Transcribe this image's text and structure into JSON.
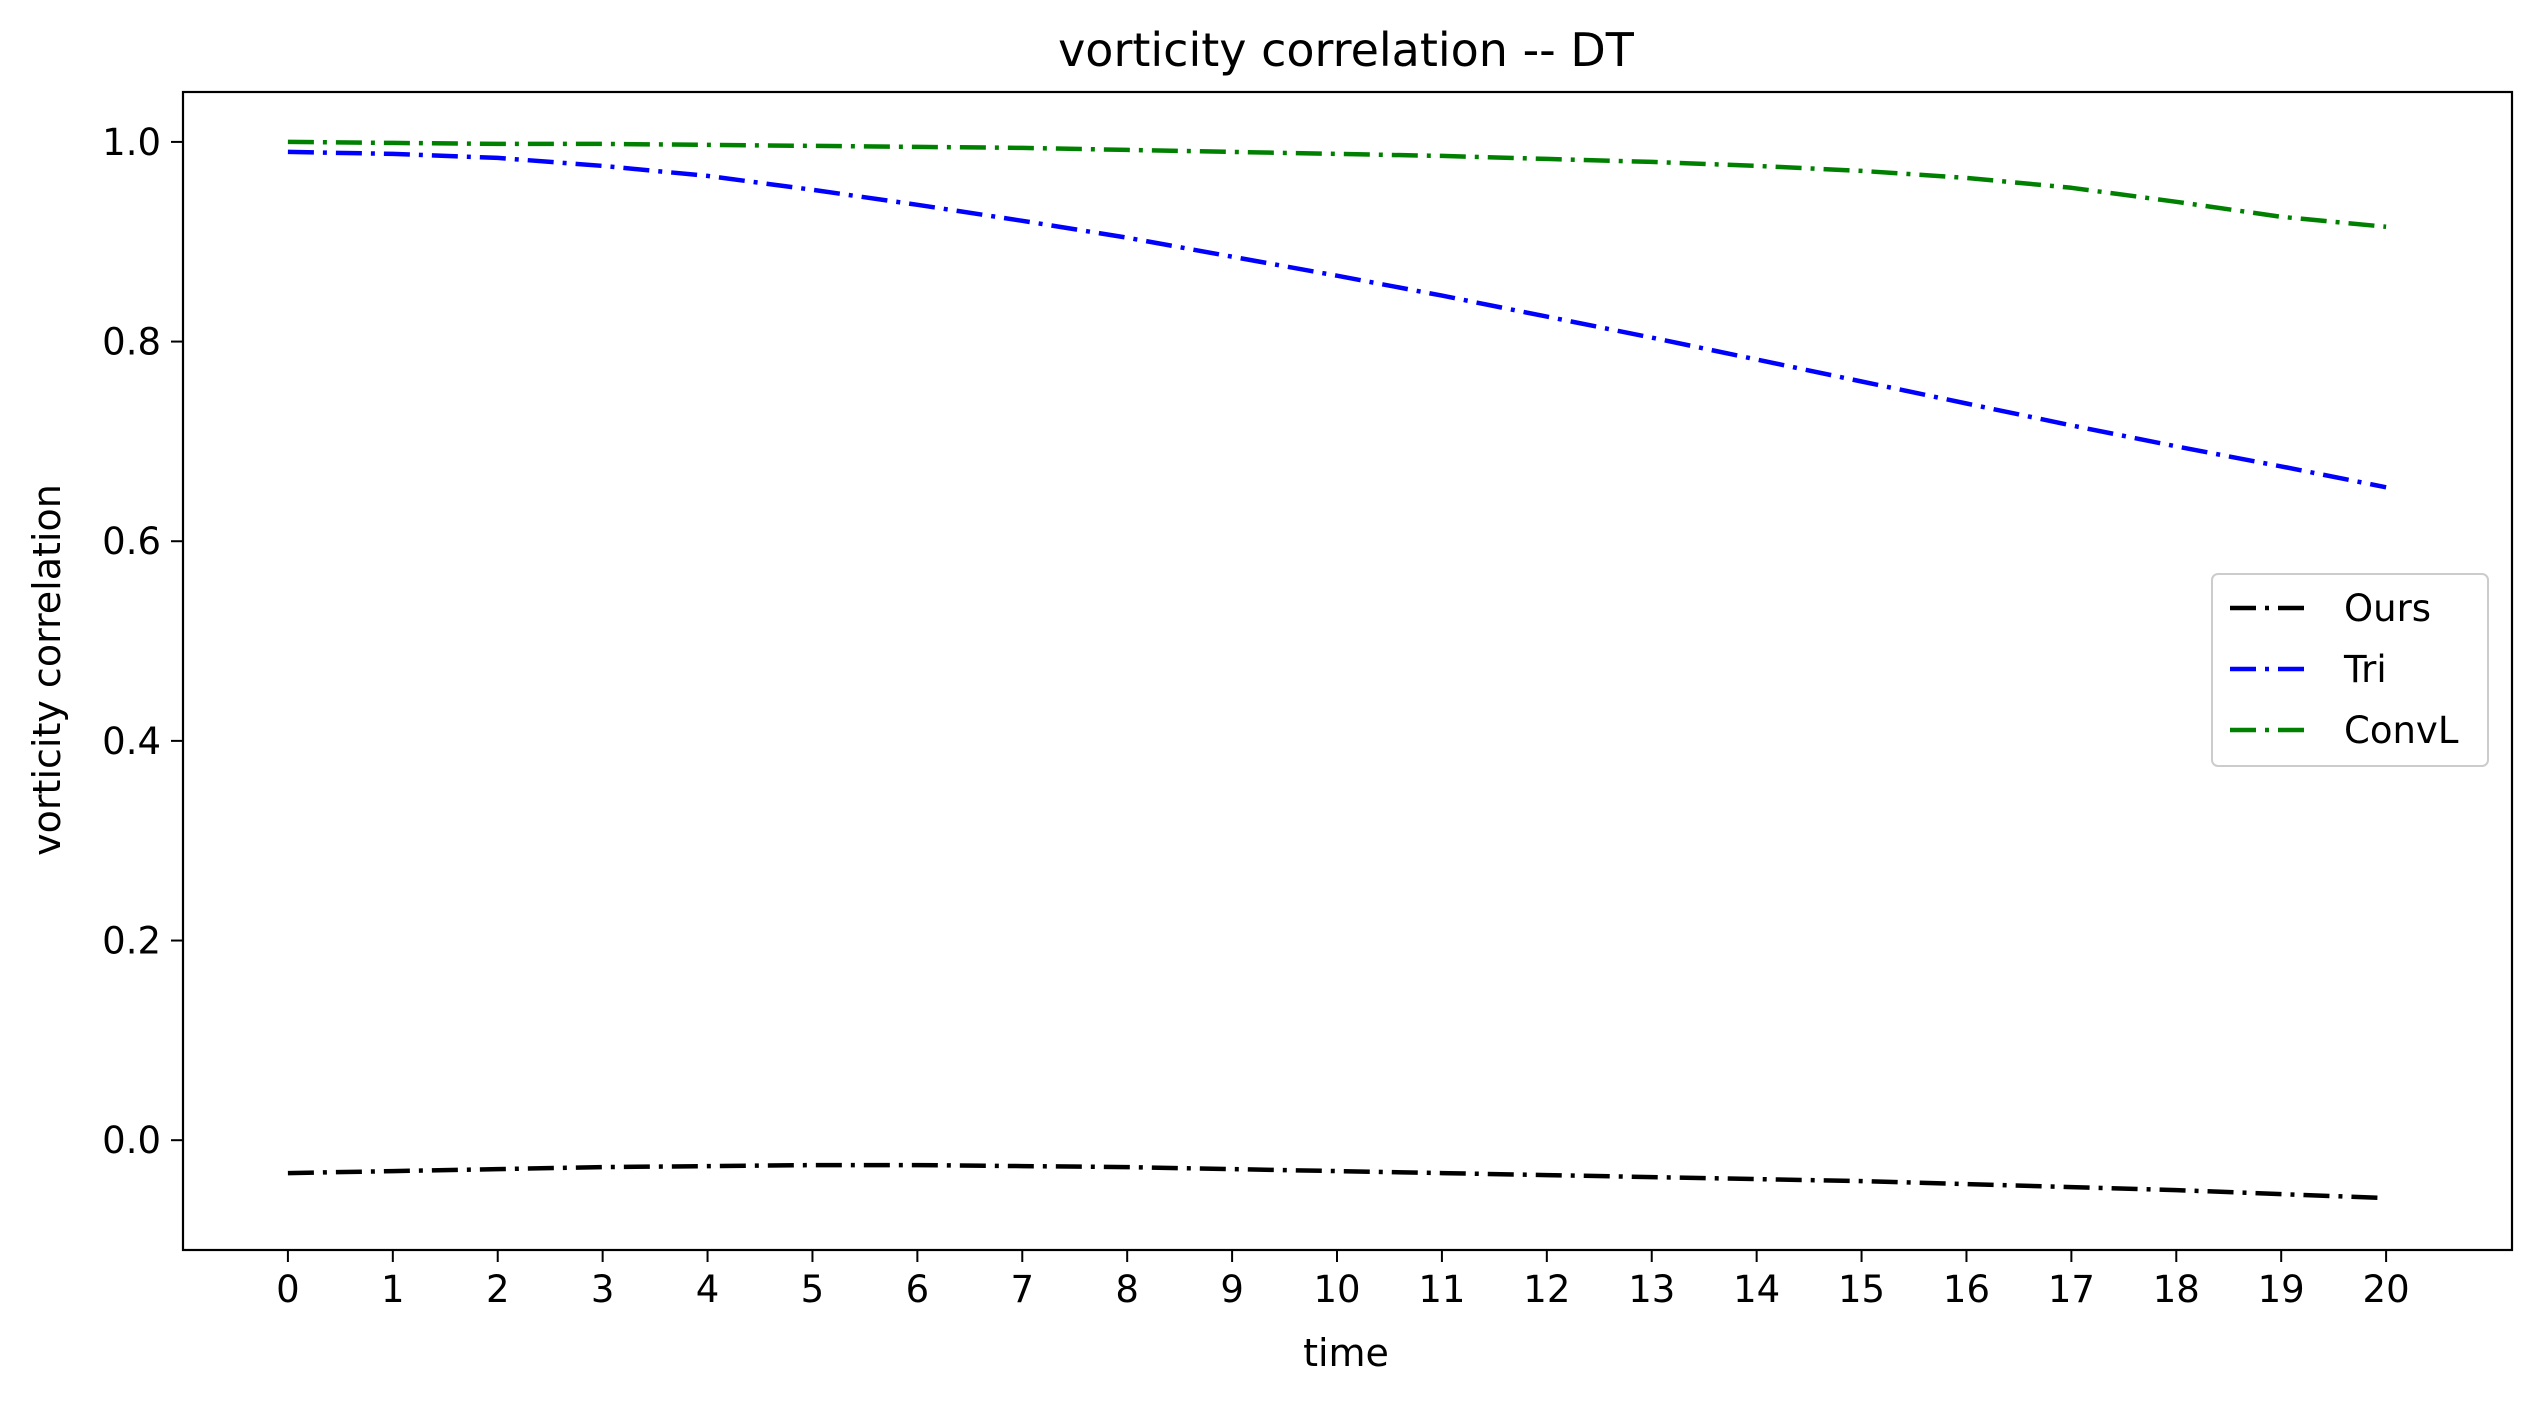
{
  "chart_data": {
    "type": "line",
    "title": "vorticity correlation -- DT",
    "xlabel": "time",
    "ylabel": "vorticity correlation",
    "xlim": [
      -1,
      21.2
    ],
    "ylim": [
      -0.11,
      1.05
    ],
    "xticks": [
      "0",
      "1",
      "2",
      "3",
      "4",
      "5",
      "6",
      "7",
      "8",
      "9",
      "10",
      "11",
      "12",
      "13",
      "14",
      "15",
      "16",
      "17",
      "18",
      "19",
      "20"
    ],
    "yticks": [
      "0.0",
      "0.2",
      "0.4",
      "0.6",
      "0.8",
      "1.0"
    ],
    "grid": false,
    "legend_position": "center-right",
    "x": [
      0,
      1,
      2,
      3,
      4,
      5,
      6,
      7,
      8,
      9,
      10,
      11,
      12,
      13,
      14,
      15,
      16,
      17,
      18,
      19,
      20
    ],
    "series": [
      {
        "name": "Ours",
        "color": "#000000",
        "linestyle": "dashdot",
        "values": [
          -0.033,
          -0.031,
          -0.029,
          -0.027,
          -0.026,
          -0.025,
          -0.025,
          -0.026,
          -0.027,
          -0.029,
          -0.031,
          -0.033,
          -0.035,
          -0.037,
          -0.039,
          -0.041,
          -0.044,
          -0.047,
          -0.05,
          -0.054,
          -0.058
        ]
      },
      {
        "name": "Tri",
        "color": "#0000ff",
        "linestyle": "dashdot",
        "values": [
          0.99,
          0.988,
          0.984,
          0.976,
          0.966,
          0.952,
          0.937,
          0.921,
          0.904,
          0.885,
          0.866,
          0.846,
          0.825,
          0.804,
          0.782,
          0.76,
          0.738,
          0.716,
          0.695,
          0.675,
          0.654
        ]
      },
      {
        "name": "ConvL",
        "color": "#008000",
        "linestyle": "dashdot",
        "values": [
          1.0,
          0.999,
          0.998,
          0.998,
          0.997,
          0.996,
          0.995,
          0.994,
          0.992,
          0.99,
          0.988,
          0.986,
          0.983,
          0.98,
          0.976,
          0.971,
          0.964,
          0.954,
          0.94,
          0.925,
          0.915
        ]
      }
    ]
  }
}
